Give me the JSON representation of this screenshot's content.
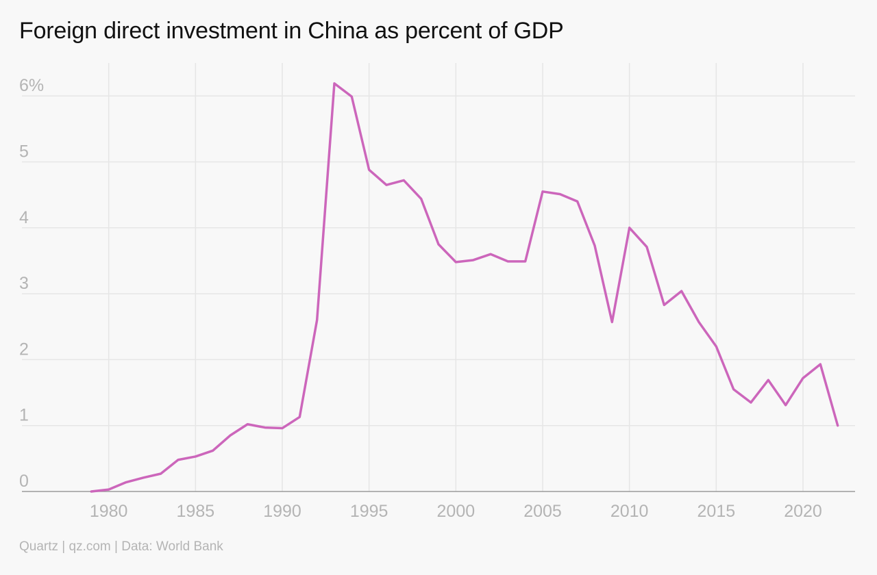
{
  "chart_data": {
    "type": "line",
    "title": "Foreign direct investment in China as percent of GDP",
    "source": "Quartz | qz.com | Data: World Bank",
    "xlabel": "",
    "ylabel": "",
    "xlim": [
      1975,
      2023
    ],
    "ylim": [
      0,
      6.5
    ],
    "x_ticks": [
      {
        "value": 1980,
        "label": "1980"
      },
      {
        "value": 1985,
        "label": "1985"
      },
      {
        "value": 1990,
        "label": "1990"
      },
      {
        "value": 1995,
        "label": "1995"
      },
      {
        "value": 2000,
        "label": "2000"
      },
      {
        "value": 2005,
        "label": "2005"
      },
      {
        "value": 2010,
        "label": "2010"
      },
      {
        "value": 2015,
        "label": "2015"
      },
      {
        "value": 2020,
        "label": "2020"
      }
    ],
    "y_ticks": [
      {
        "value": 0,
        "label": "0"
      },
      {
        "value": 1,
        "label": "1"
      },
      {
        "value": 2,
        "label": "2"
      },
      {
        "value": 3,
        "label": "3"
      },
      {
        "value": 4,
        "label": "4"
      },
      {
        "value": 5,
        "label": "5"
      },
      {
        "value": 6,
        "label": "6%"
      }
    ],
    "grid": true,
    "line_color": "#cc66bb",
    "grid_color": "#e6e6e6",
    "axis_color": "#9a9a9a",
    "series": [
      {
        "x": [
          1979,
          1980,
          1981,
          1982,
          1983,
          1984,
          1985,
          1986,
          1987,
          1988,
          1989,
          1990,
          1991,
          1992,
          1993,
          1994,
          1995,
          1996,
          1997,
          1998,
          1999,
          2000,
          2001,
          2002,
          2003,
          2004,
          2005,
          2006,
          2007,
          2008,
          2009,
          2010,
          2011,
          2012,
          2013,
          2014,
          2015,
          2016,
          2017,
          2018,
          2019,
          2020,
          2021,
          2022
        ],
        "values": [
          0.0,
          0.03,
          0.14,
          0.21,
          0.27,
          0.48,
          0.53,
          0.62,
          0.85,
          1.02,
          0.97,
          0.96,
          1.13,
          2.6,
          6.19,
          5.99,
          4.88,
          4.65,
          4.72,
          4.44,
          3.75,
          3.48,
          3.51,
          3.6,
          3.49,
          3.49,
          4.55,
          4.51,
          4.4,
          3.73,
          2.57,
          4.0,
          3.71,
          2.83,
          3.04,
          2.57,
          2.2,
          1.55,
          1.35,
          1.69,
          1.31,
          1.72,
          1.93,
          1.0
        ]
      }
    ]
  }
}
